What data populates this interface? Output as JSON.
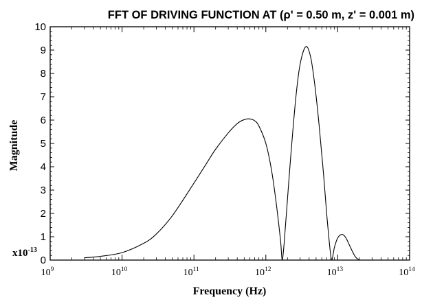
{
  "chart_data": {
    "type": "line",
    "title": "FFT OF DRIVING FUNCTION AT (ρ' = 0.50 m,  z' = 0.001 m)",
    "xlabel": "Frequency (Hz)",
    "ylabel": "Magnitude",
    "y_multiplier_label": "x10",
    "y_multiplier_exponent": "-13",
    "x_scale": "log",
    "xlim": [
      1000000000.0,
      100000000000000.0
    ],
    "ylim": [
      0,
      10
    ],
    "x_ticks": [
      {
        "base": "10",
        "exp": "9"
      },
      {
        "base": "10",
        "exp": "10"
      },
      {
        "base": "10",
        "exp": "11"
      },
      {
        "base": "10",
        "exp": "12"
      },
      {
        "base": "10",
        "exp": "13"
      },
      {
        "base": "10",
        "exp": "14"
      }
    ],
    "y_ticks": [
      "0",
      "1",
      "2",
      "3",
      "4",
      "5",
      "6",
      "7",
      "8",
      "9",
      "10"
    ],
    "grid": false,
    "legend": "none",
    "series": [
      {
        "x": [
          3000000000.0,
          5000000000.0,
          10000000000.0,
          20000000000.0,
          30000000000.0,
          50000000000.0,
          100000000000.0,
          150000000000.0,
          200000000000.0,
          300000000000.0,
          400000000000.0,
          500000000000.0,
          600000000000.0,
          700000000000.0,
          800000000000.0,
          1000000000000.0,
          1200000000000.0,
          1400000000000.0,
          1600000000000.0,
          1700000000000.0,
          1900000000000.0,
          2200000000000.0,
          2600000000000.0,
          3000000000000.0,
          3600000000000.0,
          4200000000000.0,
          4800000000000.0,
          5500000000000.0,
          6300000000000.0,
          7200000000000.0,
          8200000000000.0,
          9000000000000.0,
          10000000000000.0,
          11500000000000.0,
          13000000000000.0,
          15000000000000.0,
          17500000000000.0,
          20000000000000.0
        ],
        "y": [
          0.1,
          0.16,
          0.32,
          0.72,
          1.12,
          1.9,
          3.3,
          4.15,
          4.75,
          5.45,
          5.85,
          6.02,
          6.05,
          5.97,
          5.75,
          5.0,
          3.85,
          2.4,
          0.85,
          0.0,
          1.7,
          4.3,
          6.9,
          8.4,
          9.15,
          8.7,
          7.5,
          5.8,
          3.8,
          1.6,
          0.0,
          0.55,
          0.95,
          1.1,
          0.95,
          0.55,
          0.15,
          0.0
        ]
      }
    ]
  }
}
